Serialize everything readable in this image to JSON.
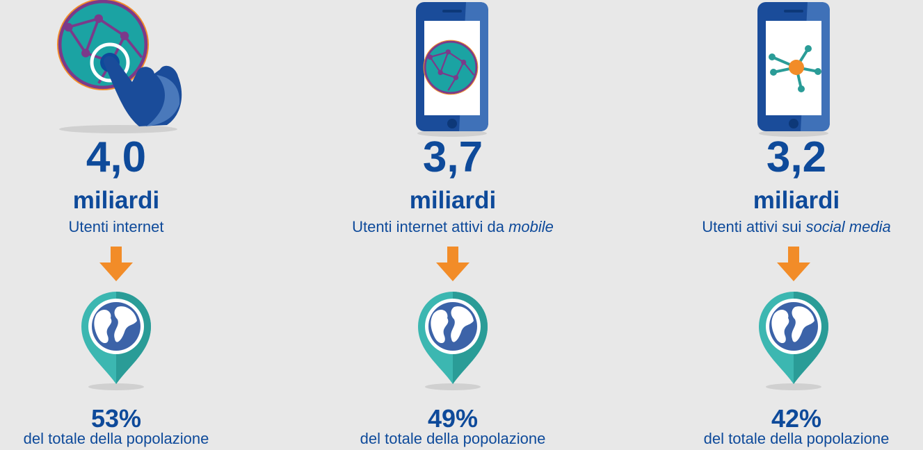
{
  "items": [
    {
      "number": "4,0",
      "unit": "miliardi",
      "label": "Utenti internet",
      "percent": "53%",
      "caption": "del totale della popolazione"
    },
    {
      "number": "3,7",
      "unit": "miliardi",
      "label": "Utenti internet attivi da",
      "label_italic": "mobile",
      "percent": "49%",
      "caption": "del totale della popolazione"
    },
    {
      "number": "3,2",
      "unit": "miliardi",
      "label": "Utenti attivi sui",
      "label_italic": "social media",
      "percent": "42%",
      "caption": "del totale della popolazione"
    }
  ]
}
